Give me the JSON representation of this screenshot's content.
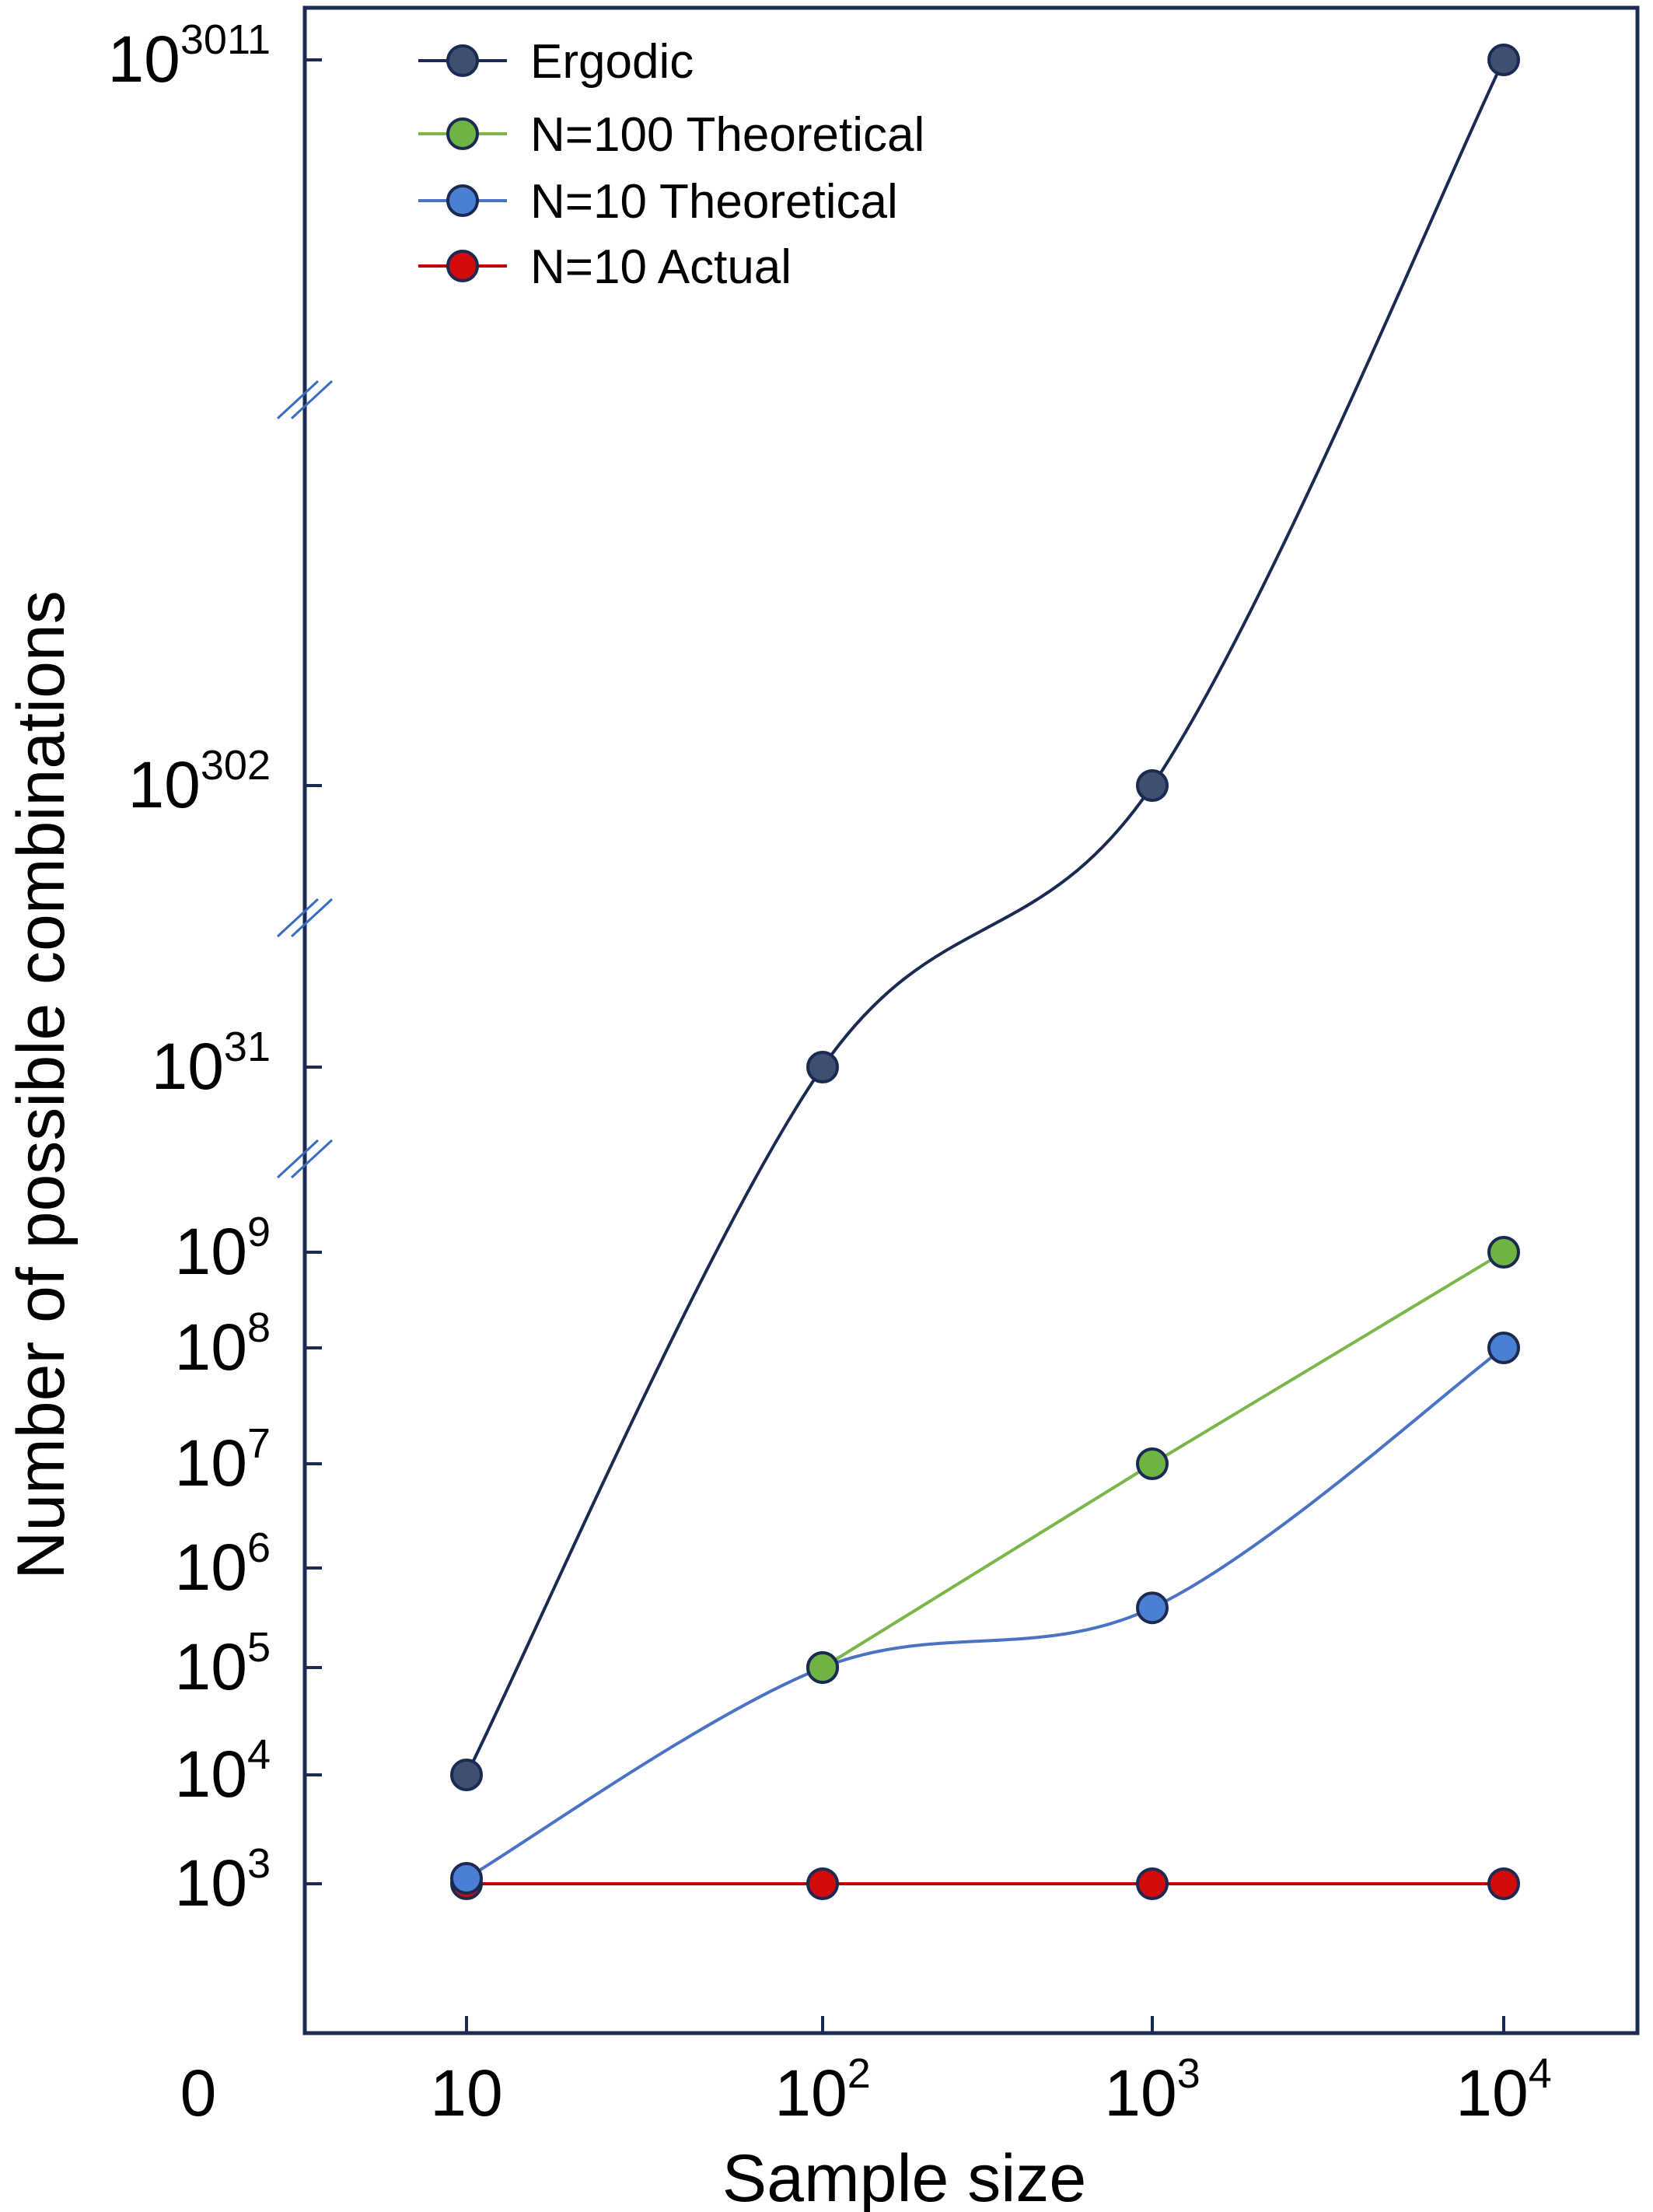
{
  "chart_data": {
    "type": "line",
    "title": "",
    "xlabel": "Sample size",
    "ylabel": "Number of possible combinations",
    "x_scale": "log",
    "y_scale": "log (broken axis)",
    "x": [
      10,
      100,
      1000,
      10000
    ],
    "x_ticks": [
      {
        "value": 0,
        "base": "0",
        "exp": ""
      },
      {
        "value": 10,
        "base": "10",
        "exp": ""
      },
      {
        "value": 100,
        "base": "10",
        "exp": "2"
      },
      {
        "value": 1000,
        "base": "10",
        "exp": "3"
      },
      {
        "value": 10000,
        "base": "10",
        "exp": "4"
      }
    ],
    "y_ticks": [
      {
        "log10": 3,
        "base": "10",
        "exp": "3"
      },
      {
        "log10": 4,
        "base": "10",
        "exp": "4"
      },
      {
        "log10": 5,
        "base": "10",
        "exp": "5"
      },
      {
        "log10": 6,
        "base": "10",
        "exp": "6"
      },
      {
        "log10": 7,
        "base": "10",
        "exp": "7"
      },
      {
        "log10": 8,
        "base": "10",
        "exp": "8"
      },
      {
        "log10": 9,
        "base": "10",
        "exp": "9"
      },
      {
        "log10": 31,
        "base": "10",
        "exp": "31"
      },
      {
        "log10": 302,
        "base": "10",
        "exp": "302"
      },
      {
        "log10": 3011,
        "base": "10",
        "exp": "3011"
      }
    ],
    "y_axis_breaks": [
      "between 10^9 and 10^31",
      "between 10^31 and 10^302",
      "between 10^302 and 10^3011"
    ],
    "series": [
      {
        "name": "Ergodic",
        "color": "#1b2a52",
        "marker_color": "#3f4f6f",
        "curve": "smooth",
        "x": [
          10,
          100,
          1000,
          10000
        ],
        "log10_values": [
          4,
          31,
          302,
          3011
        ]
      },
      {
        "name": "N=100 Theoretical",
        "color": "#7ab648",
        "marker_color": "#6fb344",
        "curve": "straight",
        "x": [
          100,
          1000,
          10000
        ],
        "log10_values": [
          5,
          7,
          9
        ]
      },
      {
        "name": "N=10 Theoretical",
        "color": "#4a73c6",
        "marker_color": "#4a7fd4",
        "curve": "smooth",
        "x": [
          10,
          100,
          1000,
          10000
        ],
        "log10_values": [
          3.05,
          5,
          5.6,
          8
        ]
      },
      {
        "name": "N=10 Actual",
        "color": "#c00000",
        "marker_color": "#d10a0a",
        "curve": "straight",
        "x": [
          10,
          100,
          1000,
          10000
        ],
        "log10_values": [
          3,
          3,
          3,
          3
        ]
      }
    ],
    "legend": {
      "position": "top-left",
      "entries": [
        "Ergodic",
        "N=100 Theoretical",
        "N=10 Theoretical",
        "N=10 Actual"
      ]
    },
    "grid": false,
    "frame_color": "#1b2a52",
    "break_mark_color": "#3a6cc4"
  }
}
